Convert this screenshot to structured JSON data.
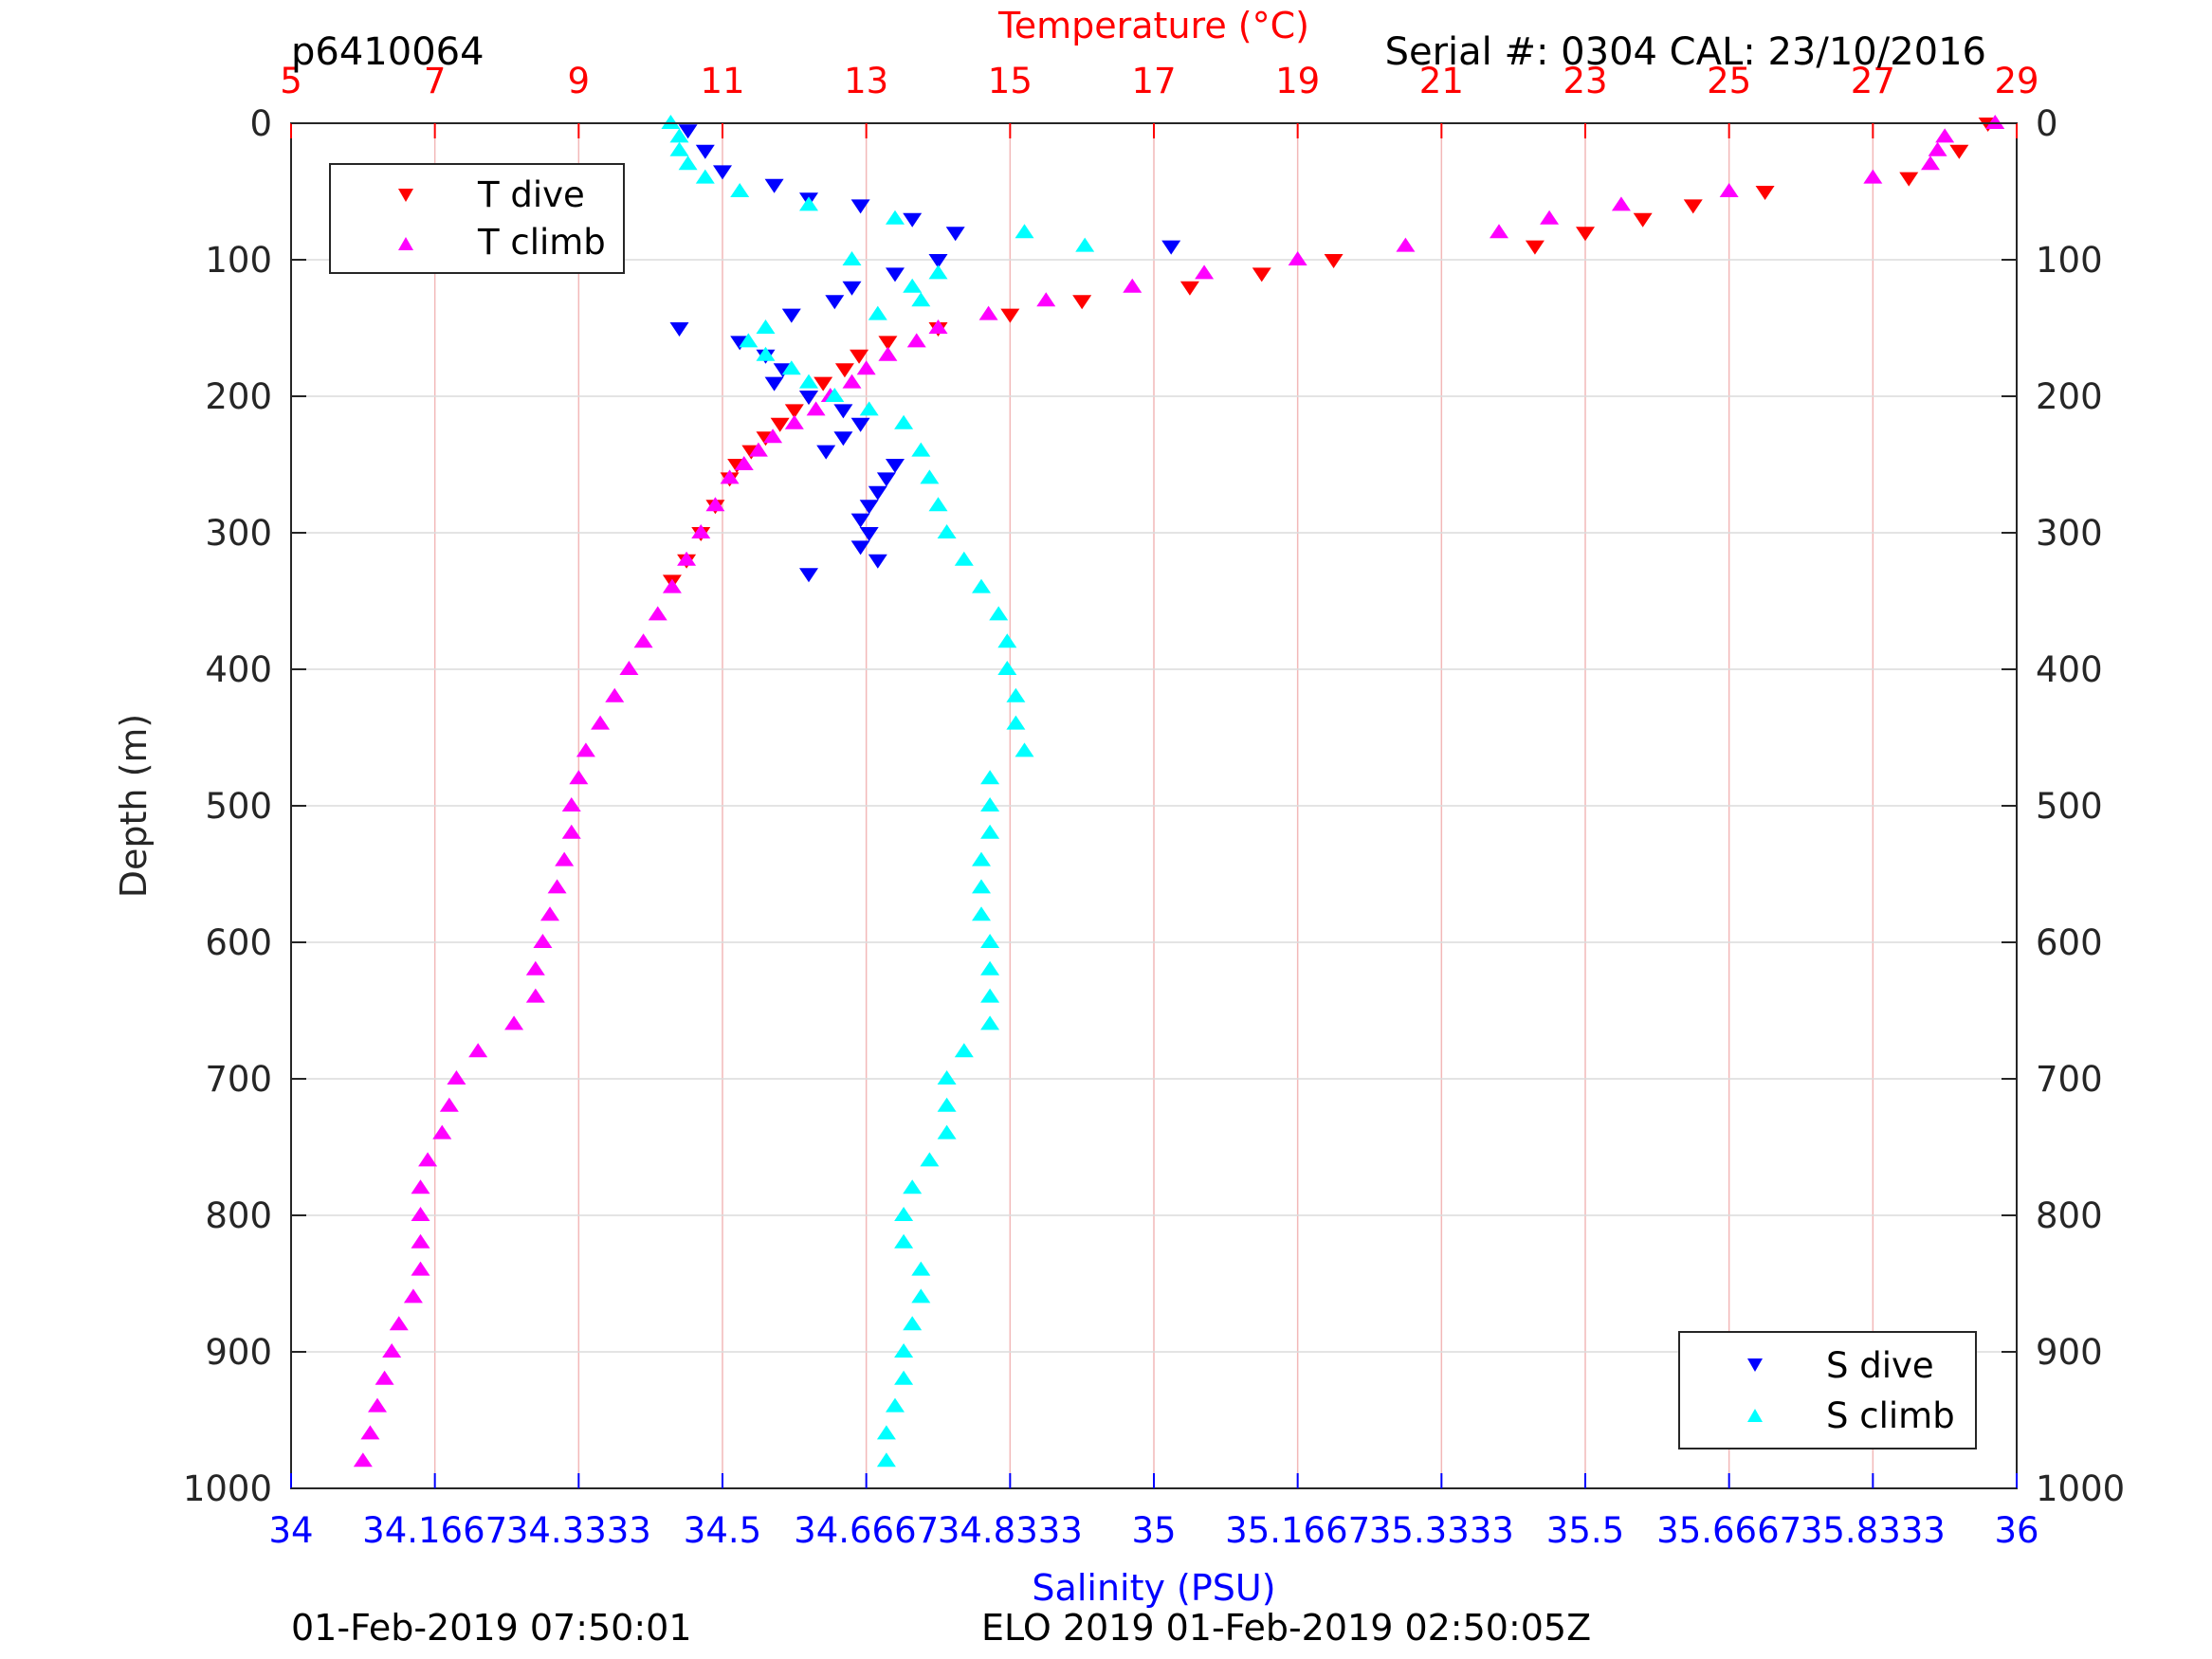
{
  "header": {
    "profile_id": "p6410064",
    "serial_cal": "Serial #: 0304  CAL: 23/10/2016"
  },
  "footer": {
    "left_timestamp": "01-Feb-2019 07:50:01",
    "mission_stamp": "ELO 2019 01-Feb-2019 02:50:05Z"
  },
  "colors": {
    "t_dive": "#ff0000",
    "t_climb": "#ff00ff",
    "s_dive": "#0000ff",
    "s_climb": "#00ffff",
    "temp_axis": "#ff0000",
    "sal_axis": "#0000ff",
    "grid": "#f2b8b8"
  },
  "chart_data": {
    "type": "scatter",
    "ylabel": "Depth (m)",
    "top_xlabel": "Temperature (°C)",
    "bottom_xlabel": "Salinity (PSU)",
    "ylim": [
      0,
      1000
    ],
    "y_reversed": true,
    "yticks": [
      "0",
      "100",
      "200",
      "300",
      "400",
      "500",
      "600",
      "700",
      "800",
      "900",
      "1000"
    ],
    "temp_xlim": [
      5,
      29
    ],
    "temp_ticks": [
      "5",
      "7",
      "9",
      "11",
      "13",
      "15",
      "17",
      "19",
      "21",
      "23",
      "25",
      "27",
      "29"
    ],
    "sal_xlim": [
      34,
      36
    ],
    "sal_ticks": [
      "34",
      "34.1667",
      "34.3333",
      "34.5",
      "34.6667",
      "34.8333",
      "35",
      "35.1667",
      "35.3333",
      "35.5",
      "35.6667",
      "35.8333",
      "36"
    ],
    "grid": true,
    "legends": [
      {
        "location": "top-left",
        "entries": [
          "T dive",
          "T climb"
        ]
      },
      {
        "location": "bottom-right",
        "entries": [
          "S dive",
          "S climb"
        ]
      }
    ],
    "series": [
      {
        "name": "T dive",
        "marker": "triangle-down",
        "depth": [
          0,
          20,
          40,
          50,
          60,
          70,
          80,
          90,
          100,
          110,
          120,
          130,
          140,
          150,
          160,
          170,
          180,
          190,
          200,
          210,
          220,
          230,
          240,
          250,
          260,
          280,
          300,
          320,
          335
        ],
        "temperature": [
          28.6,
          28.2,
          27.5,
          25.5,
          24.5,
          23.8,
          23.0,
          22.3,
          19.5,
          18.5,
          17.5,
          16.0,
          15.0,
          14.0,
          13.3,
          12.9,
          12.7,
          12.4,
          12.2,
          12.0,
          11.8,
          11.6,
          11.4,
          11.2,
          11.1,
          10.9,
          10.7,
          10.5,
          10.3
        ]
      },
      {
        "name": "T climb",
        "marker": "triangle-up",
        "depth": [
          0,
          10,
          20,
          30,
          40,
          50,
          60,
          70,
          80,
          90,
          100,
          110,
          120,
          130,
          140,
          150,
          160,
          170,
          180,
          190,
          200,
          210,
          220,
          230,
          240,
          250,
          260,
          280,
          300,
          320,
          340,
          360,
          380,
          400,
          420,
          440,
          460,
          480,
          500,
          520,
          540,
          560,
          580,
          600,
          620,
          640,
          660,
          680,
          700,
          720,
          740,
          760,
          780,
          800,
          820,
          840,
          860,
          880,
          900,
          920,
          940,
          960,
          980
        ],
        "temperature": [
          28.7,
          28.0,
          27.9,
          27.8,
          27.0,
          25.0,
          23.5,
          22.5,
          21.8,
          20.5,
          19.0,
          17.7,
          16.7,
          15.5,
          14.7,
          14.0,
          13.7,
          13.3,
          13.0,
          12.8,
          12.5,
          12.3,
          12.0,
          11.7,
          11.5,
          11.3,
          11.1,
          10.9,
          10.7,
          10.5,
          10.3,
          10.1,
          9.9,
          9.7,
          9.5,
          9.3,
          9.1,
          9.0,
          8.9,
          8.9,
          8.8,
          8.7,
          8.6,
          8.5,
          8.4,
          8.4,
          8.1,
          7.6,
          7.3,
          7.2,
          7.1,
          6.9,
          6.8,
          6.8,
          6.8,
          6.8,
          6.7,
          6.5,
          6.4,
          6.3,
          6.2,
          6.1,
          6.0
        ]
      },
      {
        "name": "S dive",
        "marker": "triangle-down",
        "depth": [
          5,
          20,
          35,
          45,
          55,
          60,
          70,
          80,
          90,
          100,
          110,
          120,
          130,
          140,
          150,
          160,
          170,
          180,
          190,
          200,
          210,
          220,
          230,
          240,
          250,
          260,
          270,
          280,
          290,
          300,
          310,
          320,
          330
        ],
        "salinity": [
          34.46,
          34.48,
          34.5,
          34.56,
          34.6,
          34.66,
          34.72,
          34.77,
          35.02,
          34.75,
          34.7,
          34.65,
          34.63,
          34.58,
          34.45,
          34.52,
          34.55,
          34.57,
          34.56,
          34.6,
          34.64,
          34.66,
          34.64,
          34.62,
          34.7,
          34.69,
          34.68,
          34.67,
          34.66,
          34.67,
          34.66,
          34.68,
          34.6
        ]
      },
      {
        "name": "S climb",
        "marker": "triangle-up",
        "depth": [
          0,
          10,
          20,
          30,
          40,
          50,
          60,
          70,
          80,
          90,
          100,
          110,
          120,
          130,
          140,
          150,
          160,
          170,
          180,
          190,
          200,
          210,
          220,
          240,
          260,
          280,
          300,
          320,
          340,
          360,
          380,
          400,
          420,
          440,
          460,
          480,
          500,
          520,
          540,
          560,
          580,
          600,
          620,
          640,
          660,
          680,
          700,
          720,
          740,
          760,
          780,
          800,
          820,
          840,
          860,
          880,
          900,
          920,
          940,
          960,
          980
        ],
        "salinity": [
          34.44,
          34.45,
          34.45,
          34.46,
          34.48,
          34.52,
          34.6,
          34.7,
          34.85,
          34.92,
          34.65,
          34.75,
          34.72,
          34.73,
          34.68,
          34.55,
          34.53,
          34.55,
          34.58,
          34.6,
          34.63,
          34.67,
          34.71,
          34.73,
          34.74,
          34.75,
          34.76,
          34.78,
          34.8,
          34.82,
          34.83,
          34.83,
          34.84,
          34.84,
          34.85,
          34.81,
          34.81,
          34.81,
          34.8,
          34.8,
          34.8,
          34.81,
          34.81,
          34.81,
          34.81,
          34.78,
          34.76,
          34.76,
          34.76,
          34.74,
          34.72,
          34.71,
          34.71,
          34.73,
          34.73,
          34.72,
          34.71,
          34.71,
          34.7,
          34.69,
          34.69
        ]
      }
    ]
  }
}
